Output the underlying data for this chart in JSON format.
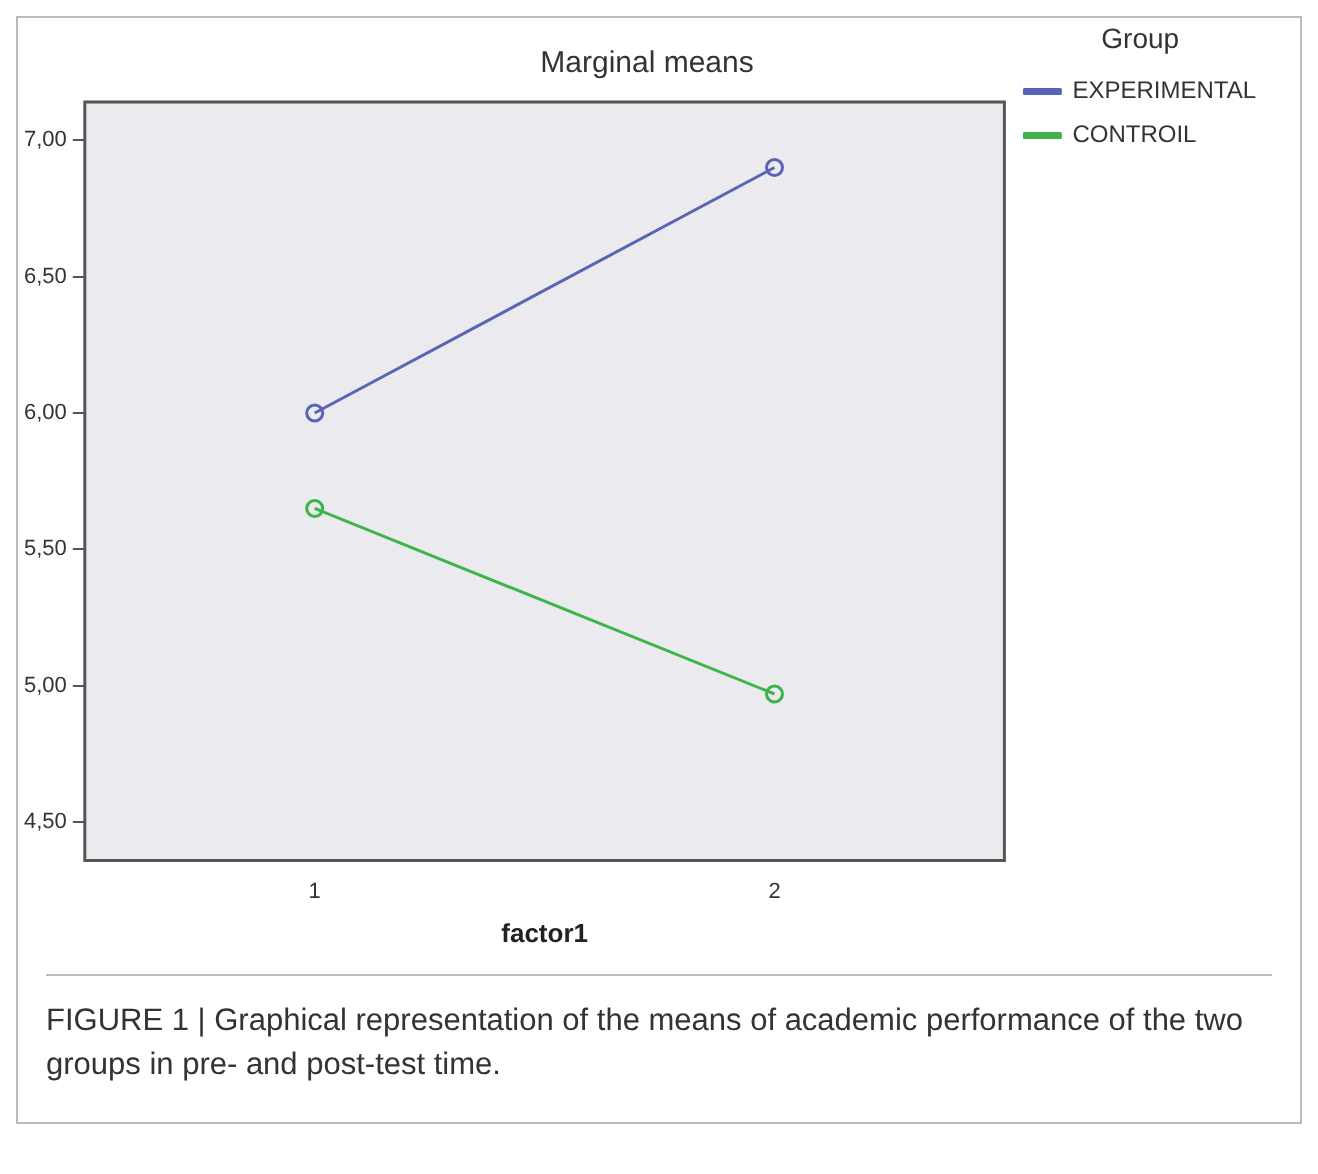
{
  "chart_data": {
    "type": "line",
    "title": "Marginal means",
    "xlabel": "factor1",
    "legend_title": "Group",
    "legend": "top right",
    "marker": "circle",
    "line_style": "solid",
    "grid": false,
    "categories": [
      "1",
      "2"
    ],
    "series": [
      {
        "name": "EXPERIMENTAL",
        "color": "#5a64b4",
        "values": [
          6.0,
          6.9
        ]
      },
      {
        "name": "CONTROIL",
        "color": "#3cb44a",
        "values": [
          5.65,
          4.97
        ]
      }
    ],
    "ylim": [
      4.36,
      7.14
    ],
    "yticks": [
      {
        "value": 4.5,
        "label": "4,50"
      },
      {
        "value": 5,
        "label": "5,00"
      },
      {
        "value": 5.5,
        "label": "5,50"
      },
      {
        "value": 6,
        "label": "6,00"
      },
      {
        "value": 6.5,
        "label": "6,50"
      },
      {
        "value": 7,
        "label": "7,00"
      }
    ],
    "annotations": [
      "FIGURE 1 | Graphical representation of the means of academic performance of the two groups in pre- and post-test time."
    ]
  }
}
